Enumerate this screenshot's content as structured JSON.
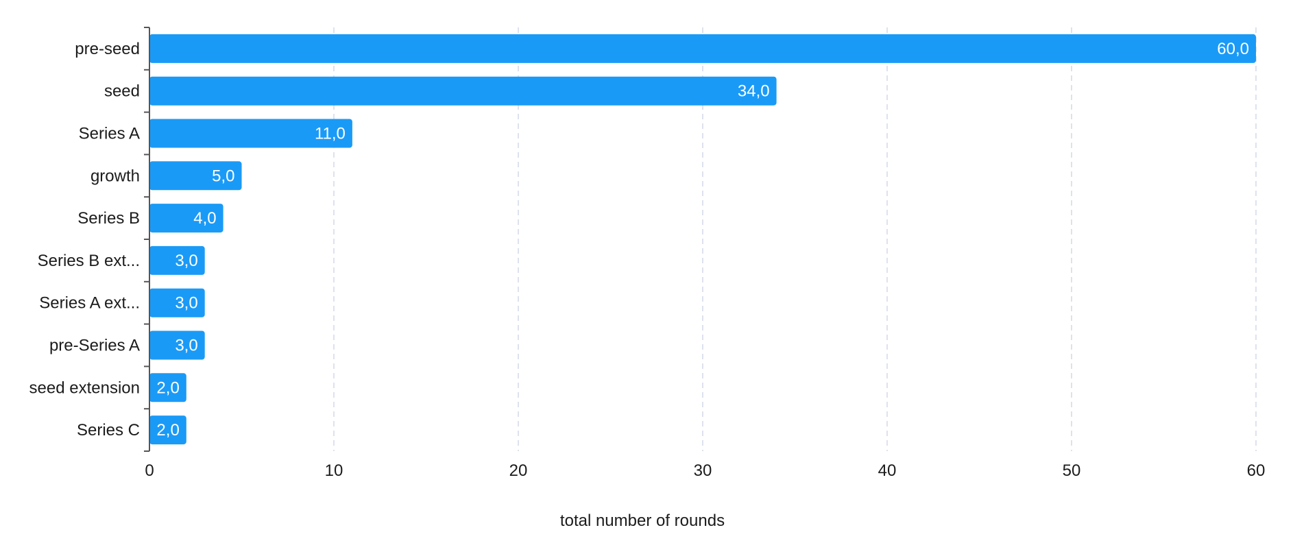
{
  "chart_data": {
    "type": "bar",
    "orientation": "horizontal",
    "categories": [
      "pre-seed",
      "seed",
      "Series A",
      "growth",
      "Series B",
      "Series B ext...",
      "Series A ext...",
      "pre-Series A",
      "seed extension",
      "Series C"
    ],
    "values": [
      60,
      34,
      11,
      5,
      4,
      3,
      3,
      3,
      2,
      2
    ],
    "data_labels": [
      "60,0",
      "34,0",
      "11,0",
      "5,0",
      "4,0",
      "3,0",
      "3,0",
      "3,0",
      "2,0",
      "2,0"
    ],
    "xlabel": "total number of rounds",
    "ylabel": "",
    "xlim": [
      0,
      60
    ],
    "xticks": [
      0,
      10,
      20,
      30,
      40,
      50,
      60
    ],
    "grid": true,
    "legend": "none",
    "colors": {
      "bar": "#1a9af7",
      "grid": "#dde2ee",
      "axis": "#555555"
    }
  }
}
